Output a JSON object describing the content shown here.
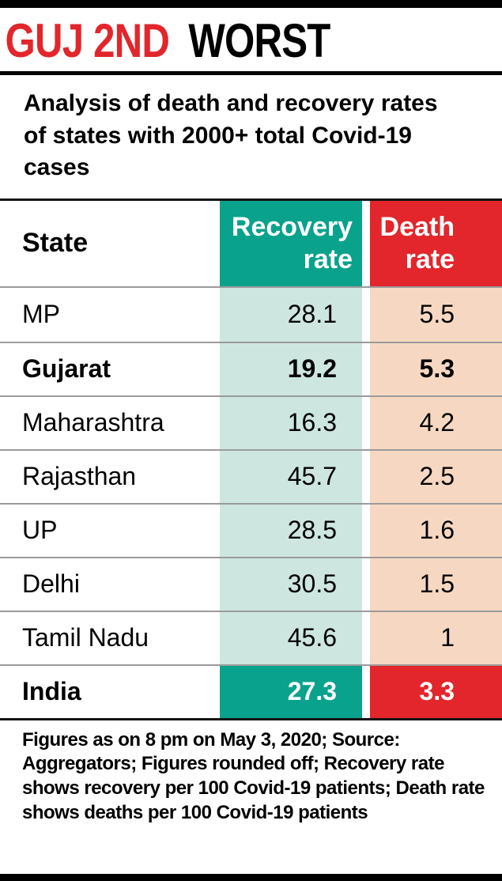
{
  "header": {
    "title_red": "GUJ 2ND",
    "title_black": "WORST",
    "subtitle": "Analysis of death and recovery rates of states with 2000+ total Covid-19 cases"
  },
  "colors": {
    "title_red": "#e2262b",
    "recovery_header_teal": "#09a28c",
    "recovery_cell_light_teal": "#cde6e0",
    "death_header_red": "#e2262b",
    "death_cell_light_salmon": "#f6d8c2",
    "separator_gray": "#9b9b9b",
    "bar_black": "#000000"
  },
  "chart_data": {
    "type": "table",
    "title": "GUJ 2ND WORST",
    "subtitle": "Analysis of death and recovery rates of states with 2000+ total Covid-19 cases",
    "columns": [
      "State",
      "Recovery rate",
      "Death rate"
    ],
    "rows": [
      {
        "state": "MP",
        "recovery": "28.1",
        "death": "5.5",
        "bold": false,
        "highlight": false
      },
      {
        "state": "Gujarat",
        "recovery": "19.2",
        "death": "5.3",
        "bold": true,
        "highlight": false
      },
      {
        "state": "Maharashtra",
        "recovery": "16.3",
        "death": "4.2",
        "bold": false,
        "highlight": false
      },
      {
        "state": "Rajasthan",
        "recovery": "45.7",
        "death": "2.5",
        "bold": false,
        "highlight": false
      },
      {
        "state": "UP",
        "recovery": "28.5",
        "death": "1.6",
        "bold": false,
        "highlight": false
      },
      {
        "state": "Delhi",
        "recovery": "30.5",
        "death": "1.5",
        "bold": false,
        "highlight": false
      },
      {
        "state": "Tamil Nadu",
        "recovery": "45.6",
        "death": "1",
        "bold": false,
        "highlight": false
      },
      {
        "state": "India",
        "recovery": "27.3",
        "death": "3.3",
        "bold": false,
        "highlight": true
      }
    ],
    "footnote": "Figures as on 8 pm on May 3, 2020; Source: Aggregators; Figures rounded off; Recovery rate shows recovery per 100 Covid-19 patients; Death rate shows deaths per 100 Covid-19 patients"
  }
}
